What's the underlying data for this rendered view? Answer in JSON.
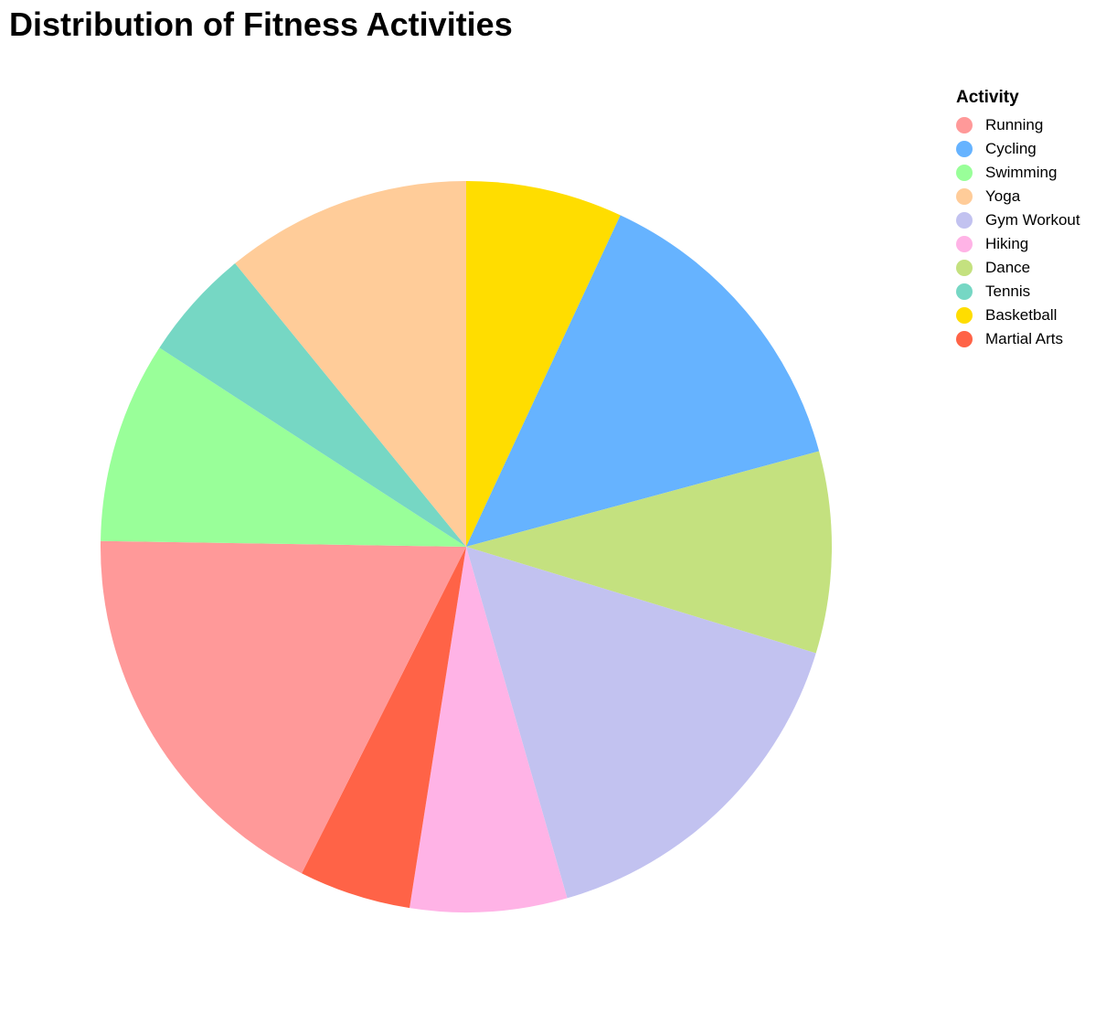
{
  "chart_data": {
    "type": "pie",
    "title": "Distribution of Fitness Activities",
    "legend_title": "Activity",
    "legend_position": "top-right",
    "slices": [
      {
        "label": "Running",
        "value": 18,
        "color": "#FF9999"
      },
      {
        "label": "Cycling",
        "value": 14,
        "color": "#66B3FF"
      },
      {
        "label": "Swimming",
        "value": 9,
        "color": "#99FF99"
      },
      {
        "label": "Yoga",
        "value": 11,
        "color": "#FFCC99"
      },
      {
        "label": "Gym Workout",
        "value": 16,
        "color": "#C2C2F0"
      },
      {
        "label": "Hiking",
        "value": 7,
        "color": "#FFB3E6"
      },
      {
        "label": "Dance",
        "value": 9,
        "color": "#C4E17F"
      },
      {
        "label": "Tennis",
        "value": 5,
        "color": "#76D7C4"
      },
      {
        "label": "Basketball",
        "value": 7,
        "color": "#FFDD00"
      },
      {
        "label": "Martial Arts",
        "value": 5,
        "color": "#FF6347"
      }
    ],
    "draw_order": [
      "Basketball",
      "Cycling",
      "Dance",
      "Gym Workout",
      "Hiking",
      "Martial Arts",
      "Running",
      "Swimming",
      "Tennis",
      "Yoga"
    ]
  }
}
